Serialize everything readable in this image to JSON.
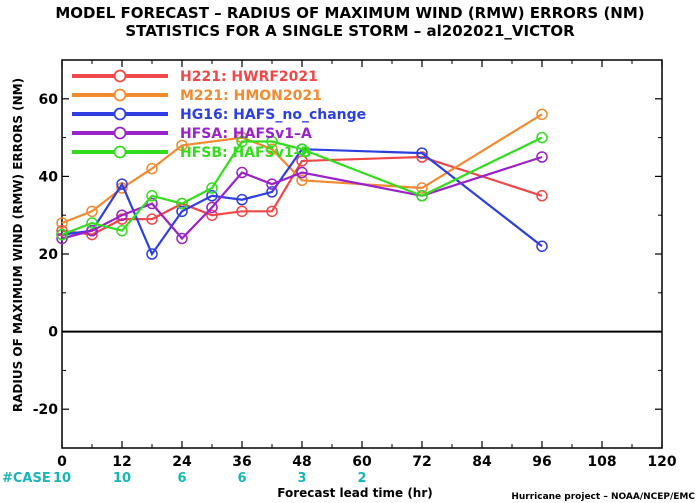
{
  "chart_data": {
    "type": "line",
    "title": "MODEL FORECAST – RADIUS OF MAXIMUM WIND (RMW) ERRORS (NM)",
    "subtitle": "STATISTICS FOR A SINGLE STORM – al202021_VICTOR",
    "xlabel": "Forecast lead time (hr)",
    "ylabel": "RADIUS OF MAXIMUM WIND (RMW) ERRORS (NM)",
    "xlim": [
      0,
      120
    ],
    "ylim": [
      -30,
      70
    ],
    "xticks": [
      "0",
      "12",
      "24",
      "36",
      "48",
      "60",
      "72",
      "84",
      "96",
      "108",
      "120"
    ],
    "yticks": [
      "-20",
      "0",
      "20",
      "40",
      "60"
    ],
    "xtick_values": [
      0,
      12,
      24,
      36,
      48,
      60,
      72,
      84,
      96,
      108,
      120
    ],
    "ytick_values": [
      -20,
      0,
      20,
      40,
      60
    ],
    "zero_line": true,
    "legend_position": "top-left",
    "series": [
      {
        "name": "H221:  HWRF2021",
        "color": "#f04848",
        "x": [
          0,
          6,
          12,
          18,
          24,
          30,
          36,
          42,
          48,
          72,
          96
        ],
        "y": [
          26,
          25,
          29,
          29,
          33,
          30,
          31,
          31,
          44,
          45,
          35
        ]
      },
      {
        "name": "M221:  HMON2021",
        "color": "#f28a30",
        "x": [
          0,
          6,
          12,
          18,
          24,
          36,
          42,
          48,
          72,
          96
        ],
        "y": [
          28,
          31,
          37,
          42,
          48,
          50,
          47,
          39,
          37,
          56
        ]
      },
      {
        "name": "HG16:  HAFS_no_change",
        "color": "#2d3fe0",
        "x": [
          0,
          6,
          12,
          18,
          24,
          30,
          36,
          42,
          48,
          72,
          96
        ],
        "y": [
          25,
          26,
          38,
          20,
          31,
          35,
          34,
          36,
          47,
          46,
          22
        ]
      },
      {
        "name": "HFSA:  HAFSv1–A",
        "color": "#9a22c8",
        "x": [
          0,
          6,
          12,
          18,
          24,
          30,
          36,
          42,
          48,
          72,
          96
        ],
        "y": [
          24,
          26,
          30,
          33,
          24,
          32,
          41,
          38,
          41,
          35,
          45
        ]
      },
      {
        "name": "HFSB:  HAFSv1–B",
        "color": "#33dd1e",
        "x": [
          0,
          6,
          12,
          18,
          24,
          30,
          36,
          42,
          48,
          72,
          96
        ],
        "y": [
          25,
          28,
          26,
          35,
          33,
          37,
          49,
          49,
          47,
          35,
          50
        ]
      }
    ],
    "case_label": "#CASE",
    "case_counts": [
      {
        "x": 0,
        "label": "10"
      },
      {
        "x": 12,
        "label": "10"
      },
      {
        "x": 24,
        "label": "6"
      },
      {
        "x": 36,
        "label": "6"
      },
      {
        "x": 48,
        "label": "3"
      },
      {
        "x": 60,
        "label": "2"
      }
    ],
    "credit": "Hurricane project – NOAA/NCEP/EMC"
  }
}
